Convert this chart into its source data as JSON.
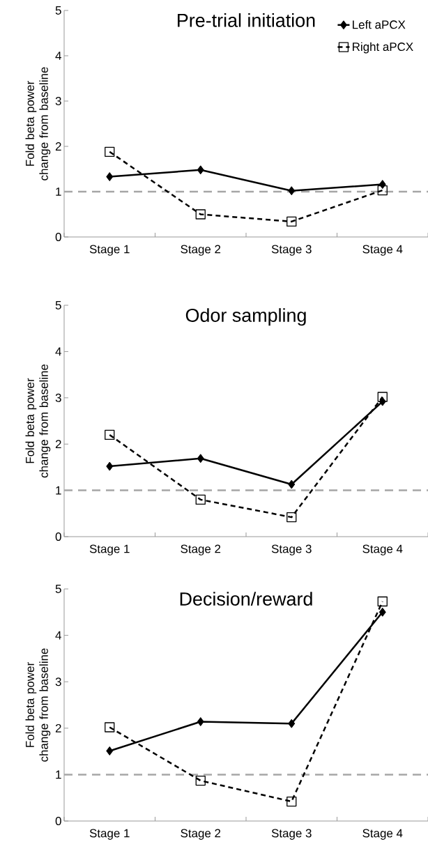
{
  "chart_data": [
    {
      "type": "line",
      "title": "Pre-trial initiation",
      "ylabel": "Fold beta power change from baseline",
      "categories": [
        "Stage 1",
        "Stage 2",
        "Stage 3",
        "Stage 4"
      ],
      "ylim": [
        0,
        5
      ],
      "yticks": [
        0,
        1,
        2,
        3,
        4,
        5
      ],
      "legend": "top right",
      "series": [
        {
          "name": "Left aPCX",
          "color": "#000000",
          "marker": "diamond",
          "line_style": "solid",
          "values": [
            1.33,
            1.48,
            1.02,
            1.16
          ]
        },
        {
          "name": "Right aPCX",
          "color": "#000000",
          "marker": "square",
          "line_style": "dashed",
          "values": [
            1.88,
            0.5,
            0.34,
            1.03
          ]
        }
      ],
      "ref_lines": [
        {
          "axis": "y",
          "value": 1,
          "color": "#a6a6a6",
          "line_style": "dashed"
        }
      ]
    },
    {
      "type": "line",
      "title": "Odor sampling",
      "ylabel": "Fold beta power change from baseline",
      "categories": [
        "Stage 1",
        "Stage 2",
        "Stage 3",
        "Stage 4"
      ],
      "ylim": [
        0,
        5
      ],
      "yticks": [
        0,
        1,
        2,
        3,
        4,
        5
      ],
      "series": [
        {
          "color": "#000000",
          "marker": "diamond",
          "line_style": "solid",
          "values": [
            1.52,
            1.69,
            1.13,
            2.92
          ]
        },
        {
          "color": "#000000",
          "marker": "square",
          "line_style": "dashed",
          "values": [
            2.2,
            0.8,
            0.42,
            3.02
          ]
        }
      ],
      "ref_lines": [
        {
          "axis": "y",
          "value": 1,
          "color": "#a6a6a6",
          "line_style": "dashed"
        }
      ]
    },
    {
      "type": "line",
      "title": "Decision/reward",
      "ylabel": "Fold beta power change from baseline",
      "categories": [
        "Stage 1",
        "Stage 2",
        "Stage 3",
        "Stage 4"
      ],
      "ylim": [
        0,
        5
      ],
      "yticks": [
        0,
        1,
        2,
        3,
        4,
        5
      ],
      "series": [
        {
          "color": "#000000",
          "marker": "diamond",
          "line_style": "solid",
          "values": [
            1.51,
            2.14,
            2.1,
            4.5
          ]
        },
        {
          "color": "#000000",
          "marker": "square",
          "line_style": "dashed",
          "values": [
            2.02,
            0.87,
            0.42,
            4.73
          ]
        }
      ],
      "ref_lines": [
        {
          "axis": "y",
          "value": 1,
          "color": "#a6a6a6",
          "line_style": "dashed"
        }
      ]
    }
  ]
}
